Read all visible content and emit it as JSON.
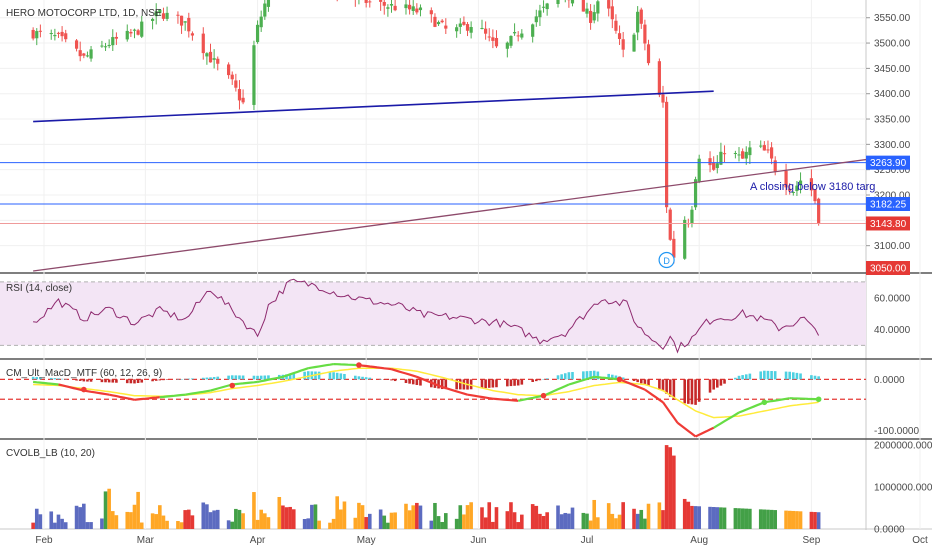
{
  "colors": {
    "up": "#4caf50",
    "down": "#ef5350",
    "hline": "#2962ff",
    "trend_blue": "#1a1aa8",
    "trend_purple": "#8d4a6b",
    "rsi_line": "#8e2a6f",
    "rsi_band": "#f3e5f5",
    "macd_up": "#4dd0e1",
    "macd_down": "#c62828",
    "signal": "#ffeb3b",
    "vol_blue": "#5c6bc0",
    "vol_green": "#43a047",
    "vol_orange": "#ffa726",
    "vol_red": "#e53935"
  },
  "header": {
    "symbol_title": "HERO MOTOCORP LTD, 1D, NSE"
  },
  "annotation": {
    "text": "A closing below 3180 targ"
  },
  "event_marker": {
    "label": "D",
    "month": "Jul",
    "day": 23
  },
  "chart_data": [
    {
      "type": "candlestick",
      "title": "HERO MOTOCORP LTD, 1D, NSE",
      "y_ticks": [
        3100,
        3150,
        3200,
        3250,
        3300,
        3350,
        3400,
        3450,
        3500,
        3550
      ],
      "ylim": [
        3048,
        3585
      ],
      "price_labels": [
        {
          "value": "3263.90",
          "style": "blue"
        },
        {
          "value": "3182.25",
          "style": "blue"
        },
        {
          "value": "3143.80",
          "style": "red"
        },
        {
          "value": "3050.00",
          "style": "red"
        }
      ],
      "horizontal_lines": [
        3263.9,
        3182.25,
        3143.8
      ],
      "trendlines": [
        {
          "color": "blue",
          "from": [
            "2019-01-29",
            3345
          ],
          "to": [
            "2019-08-05",
            3405
          ]
        },
        {
          "color": "purple",
          "from": [
            "2019-01-29",
            3050
          ],
          "to": [
            "2019-10-28",
            3310
          ]
        }
      ],
      "x_ticks": [
        "Feb",
        "Mar",
        "Apr",
        "May",
        "Jun",
        "Jul",
        "Aug",
        "Sep",
        "Oct"
      ],
      "closes_path": [
        [
          "Jan 29",
          3520
        ],
        [
          "Feb 5",
          3510
        ],
        [
          "Feb 12",
          3470
        ],
        [
          "Feb 19",
          3500
        ],
        [
          "Feb 26",
          3520
        ],
        [
          "Mar 5",
          3560
        ],
        [
          "Mar 12",
          3540
        ],
        [
          "Mar 19",
          3470
        ],
        [
          "Mar 25",
          3420
        ],
        [
          "Mar 28",
          3380
        ],
        [
          "Apr 1",
          3530
        ],
        [
          "Apr 4",
          3600
        ],
        [
          "Apr 10",
          3620
        ],
        [
          "Apr 17",
          3610
        ],
        [
          "Apr 24",
          3600
        ],
        [
          "May 2",
          3580
        ],
        [
          "May 10",
          3570
        ],
        [
          "May 17",
          3560
        ],
        [
          "May 24",
          3520
        ],
        [
          "May 31",
          3540
        ],
        [
          "Jun 7",
          3480
        ],
        [
          "Jun 12",
          3520
        ],
        [
          "Jun 18",
          3560
        ],
        [
          "Jun 25",
          3600
        ],
        [
          "Jul 2",
          3550
        ],
        [
          "Jul 5",
          3600
        ],
        [
          "Jul 9",
          3520
        ],
        [
          "Jul 12",
          3460
        ],
        [
          "Jul 15",
          3560
        ],
        [
          "Jul 17",
          3500
        ],
        [
          "Jul 19",
          3420
        ],
        [
          "Jul 22",
          3380
        ],
        [
          "Jul 23",
          3180
        ],
        [
          "Jul 24",
          3110
        ],
        [
          "Jul 25",
          3080
        ],
        [
          "Jul 26",
          3160
        ],
        [
          "Jul 29",
          3150
        ],
        [
          "Jul 30",
          3180
        ],
        [
          "Jul 31",
          3240
        ],
        [
          "Aug 1",
          3280
        ],
        [
          "Aug 2",
          3270
        ],
        [
          "Aug 5",
          3250
        ],
        [
          "Aug 6",
          3260
        ],
        [
          "Aug 8",
          3290
        ],
        [
          "Aug 13",
          3270
        ],
        [
          "Aug 16",
          3300
        ],
        [
          "Aug 20",
          3280
        ],
        [
          "Aug 23",
          3240
        ],
        [
          "Aug 27",
          3210
        ],
        [
          "Aug 29",
          3230
        ],
        [
          "Aug 30",
          3250
        ],
        [
          "Sep 2",
          3190
        ],
        [
          "Sep 3",
          3143.8
        ]
      ]
    },
    {
      "type": "line",
      "title": "RSI (14, close)",
      "y_ticks": [
        40,
        60
      ],
      "y_tick_labels": [
        "40.0000",
        "60.0000"
      ],
      "ylim": [
        22,
        75
      ],
      "band": [
        30,
        70
      ],
      "x": [
        "Jan 29",
        "Feb 5",
        "Feb 12",
        "Feb 19",
        "Feb 26",
        "Mar 5",
        "Mar 12",
        "Mar 19",
        "Mar 25",
        "Apr 1",
        "Apr 4",
        "Apr 10",
        "Apr 17",
        "Apr 24",
        "May 2",
        "May 10",
        "May 17",
        "May 24",
        "May 31",
        "Jun 7",
        "Jun 12",
        "Jun 18",
        "Jun 25",
        "Jul 2",
        "Jul 5",
        "Jul 9",
        "Jul 12",
        "Jul 15",
        "Jul 19",
        "Jul 22",
        "Jul 24",
        "Jul 26",
        "Jul 31",
        "Aug 2",
        "Aug 6",
        "Aug 8",
        "Aug 13",
        "Aug 16",
        "Aug 20",
        "Aug 23",
        "Aug 27",
        "Aug 30",
        "Sep 3"
      ],
      "values": [
        44,
        58,
        47,
        53,
        44,
        52,
        46,
        66,
        52,
        36,
        55,
        70,
        68,
        62,
        58,
        55,
        49,
        48,
        46,
        44,
        40,
        33,
        38,
        53,
        60,
        57,
        56,
        42,
        34,
        30,
        35,
        28,
        36,
        43,
        48,
        47,
        50,
        48,
        45,
        41,
        44,
        47,
        36
      ]
    },
    {
      "type": "bar+line",
      "title": "CM_Ult_MacD_MTF (60, 12, 26, 9)",
      "y_ticks": [
        0,
        -100
      ],
      "y_tick_labels": [
        "0.0000",
        "-100.0000"
      ],
      "ylim": [
        -115,
        38
      ],
      "hlines": [
        0,
        -39
      ],
      "x": [
        "Jan 29",
        "Feb 5",
        "Feb 12",
        "Feb 19",
        "Feb 26",
        "Mar 5",
        "Mar 12",
        "Mar 19",
        "Mar 25",
        "Apr 1",
        "Apr 8",
        "Apr 15",
        "Apr 22",
        "Apr 29",
        "May 8",
        "May 15",
        "May 22",
        "May 29",
        "Jun 5",
        "Jun 12",
        "Jun 19",
        "Jun 26",
        "Jul 3",
        "Jul 10",
        "Jul 17",
        "Jul 22",
        "Jul 26",
        "Jul 31",
        "Aug 5",
        "Aug 12",
        "Aug 19",
        "Aug 26",
        "Sep 3"
      ],
      "macd": [
        -5,
        -10,
        -22,
        -30,
        -40,
        -35,
        -30,
        -22,
        -10,
        -5,
        5,
        22,
        30,
        28,
        20,
        5,
        -15,
        -30,
        -38,
        -42,
        -32,
        -10,
        5,
        0,
        -20,
        -45,
        -85,
        -112,
        -95,
        -65,
        -45,
        -37,
        -39
      ],
      "signal": [
        -10,
        -12,
        -18,
        -24,
        -32,
        -33,
        -31,
        -26,
        -18,
        -12,
        -4,
        6,
        16,
        22,
        22,
        16,
        4,
        -10,
        -22,
        -30,
        -32,
        -24,
        -12,
        -6,
        -10,
        -22,
        -40,
        -62,
        -75,
        -72,
        -62,
        -52,
        -45
      ],
      "histogram": [
        5,
        2,
        -4,
        -6,
        -8,
        -2,
        1,
        4,
        8,
        7,
        9,
        16,
        14,
        6,
        -2,
        -11,
        -19,
        -20,
        -16,
        -12,
        0,
        14,
        17,
        6,
        -10,
        -23,
        -45,
        -50,
        -20,
        7,
        17,
        15,
        6
      ],
      "cross_points": [
        [
          "Feb 12",
          -20
        ],
        [
          "Mar 25",
          -12
        ],
        [
          "Apr 29",
          28
        ],
        [
          "Jun 19",
          -32
        ],
        [
          "Jul 10",
          0
        ],
        [
          "Aug 19",
          -45
        ],
        [
          "Sep 3",
          -39
        ]
      ]
    },
    {
      "type": "bar",
      "title": "CVOLB_LB (10, 20)",
      "y_ticks": [
        0,
        1000000,
        2000000
      ],
      "y_tick_labels": [
        "0.0000",
        "1000000.0000",
        "2000000.0000"
      ],
      "ylim": [
        0,
        2050000
      ],
      "x": [
        "Jan 29",
        "Jul 19",
        "Jul 22",
        "Jul 23",
        "Jul 24",
        "Jul 25",
        "Jul 26",
        "Jul 29",
        "Jul 30",
        "Sep 3"
      ],
      "values": [
        350000,
        1000000,
        450000,
        2000000,
        1950000,
        1750000,
        850000,
        650000,
        550000,
        400000
      ]
    }
  ]
}
